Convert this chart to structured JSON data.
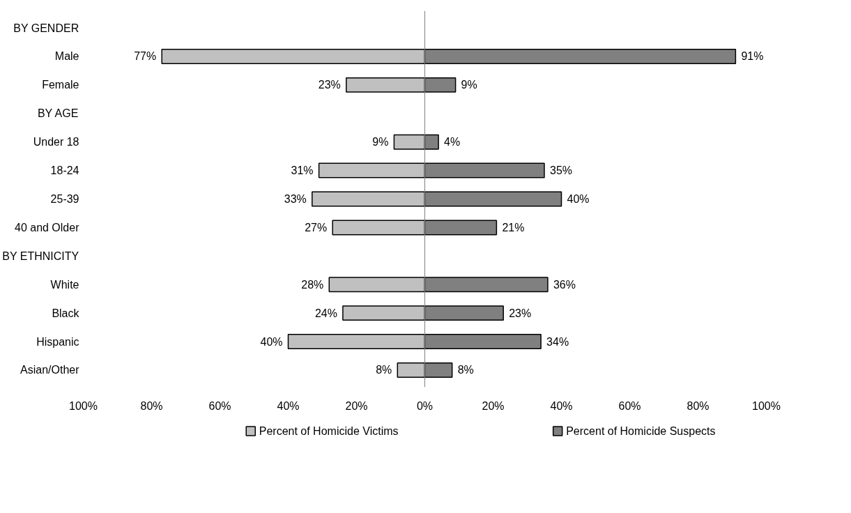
{
  "chart_data": {
    "type": "bar",
    "orientation": "horizontal",
    "categories": [
      "BY GENDER",
      "Male",
      "Female",
      "BY AGE",
      "Under 18",
      "18-24",
      "25-39",
      "40 and Older",
      "BY ETHNICITY",
      "White",
      "Black",
      "Hispanic",
      "Asian/Other"
    ],
    "series": [
      {
        "name": "Percent of Homicide Victims",
        "color": "#c0c0c0",
        "values": [
          null,
          77,
          23,
          null,
          9,
          31,
          33,
          27,
          null,
          28,
          24,
          40,
          8
        ],
        "base": [
          null,
          -77,
          -23,
          null,
          -9,
          -31,
          -33,
          -27,
          null,
          -28,
          -24,
          -40,
          -8
        ],
        "value_labels": [
          null,
          "77%",
          "23%",
          null,
          "9%",
          "31%",
          "33%",
          "27%",
          null,
          "28%",
          "24%",
          "40%",
          "8%"
        ]
      },
      {
        "name": "Percent of Homicide Suspects",
        "color": "#808080",
        "values": [
          null,
          91,
          9,
          null,
          4,
          35,
          40,
          21,
          null,
          36,
          23,
          34,
          8
        ],
        "value_labels": [
          null,
          "91%",
          "9%",
          null,
          "4%",
          "35%",
          "40%",
          "21%",
          null,
          "36%",
          "23%",
          "34%",
          "8%"
        ]
      }
    ],
    "xlim": [
      -100,
      100
    ],
    "xticks": [
      {
        "value": -100,
        "label": "100%"
      },
      {
        "value": -80,
        "label": "80%"
      },
      {
        "value": -60,
        "label": "60%"
      },
      {
        "value": -40,
        "label": "40%"
      },
      {
        "value": -20,
        "label": "20%"
      },
      {
        "value": 0,
        "label": "0%"
      },
      {
        "value": 20,
        "label": "20%"
      },
      {
        "value": 40,
        "label": "40%"
      },
      {
        "value": 60,
        "label": "60%"
      },
      {
        "value": 80,
        "label": "80%"
      },
      {
        "value": 100,
        "label": "100%"
      }
    ],
    "ref_lines": [
      {
        "axis": "x",
        "value": 0,
        "color": "#808080"
      }
    ],
    "grid": false,
    "legend": "bottom"
  }
}
